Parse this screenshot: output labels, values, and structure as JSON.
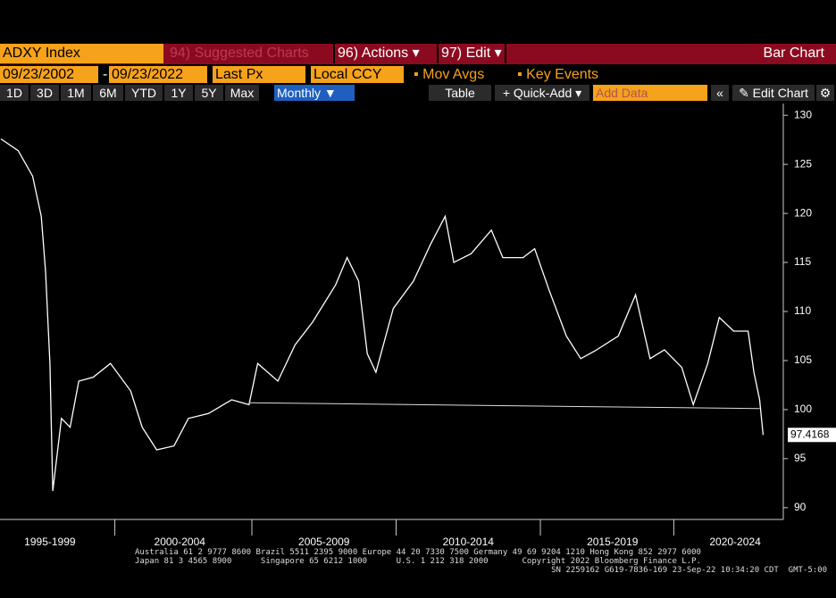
{
  "header": {
    "ticker": "ADXY Index",
    "suggested": "94) Suggested Charts",
    "actions": "96) Actions ▾",
    "edit": "97) Edit ▾",
    "chart_kind": "Bar Chart"
  },
  "settings": {
    "start_date": "09/23/2002",
    "separator": "-",
    "end_date": "09/23/2022",
    "field": "Last Px",
    "currency": "Local CCY",
    "mov_avgs": "Mov Avgs",
    "key_events": "Key Events"
  },
  "toolbar": {
    "ranges": [
      "1D",
      "3D",
      "1M",
      "6M",
      "YTD",
      "1Y",
      "5Y",
      "Max"
    ],
    "period": "Monthly ▼",
    "table": "Table",
    "quick_add": "+ Quick-Add ▾",
    "add_data": "Add Data",
    "back": "«",
    "edit_chart": "✎ Edit Chart",
    "gear": "⚙"
  },
  "footer": [
    "Australia 61 2 9777 8600 Brazil 5511 2395 9000 Europe 44 20 7330 7500 Germany 49 69 9204 1210 Hong Kong 852 2977 6000",
    "Japan 81 3 4565 8900      Singapore 65 6212 1000      U.S. 1 212 318 2000       Copyright 2022 Bloomberg Finance L.P.",
    "SN 2259162 G619-7836-169 23-Sep-22 10:34:20 CDT  GMT-5:00"
  ],
  "chart_data": {
    "type": "line",
    "color": "#ffffff",
    "x": [
      1996.3,
      1996.9,
      1997.4,
      1997.7,
      1997.85,
      1998.0,
      1998.1,
      1998.4,
      1998.7,
      1999.0,
      1999.5,
      2000.1,
      2000.8,
      2001.2,
      2001.7,
      2002.3,
      2002.8,
      2003.5,
      2004.3,
      2004.9,
      2005.2,
      2005.9,
      2006.5,
      2007.1,
      2007.9,
      2008.3,
      2008.7,
      2009.0,
      2009.3,
      2009.9,
      2010.6,
      2011.2,
      2011.7,
      2012.0,
      2012.6,
      2013.3,
      2013.7,
      2014.4,
      2014.8,
      2015.3,
      2015.9,
      2016.4,
      2016.9,
      2017.7,
      2018.3,
      2018.8,
      2019.3,
      2019.9,
      2020.3,
      2020.8,
      2021.2,
      2021.7,
      2022.2,
      2022.4,
      2022.6,
      2022.72
    ],
    "values": [
      127.6,
      126.4,
      123.8,
      119.7,
      114.1,
      104.7,
      91.7,
      99.1,
      98.2,
      102.9,
      103.3,
      104.7,
      101.9,
      98.2,
      95.9,
      96.3,
      99.1,
      99.6,
      101.0,
      100.5,
      104.7,
      102.9,
      106.6,
      108.9,
      112.7,
      115.5,
      113.1,
      105.7,
      103.8,
      110.3,
      113.1,
      116.9,
      119.7,
      115.0,
      115.9,
      118.3,
      115.5,
      115.5,
      116.4,
      112.2,
      107.5,
      105.2,
      106.0,
      107.5,
      111.7,
      105.2,
      106.1,
      104.3,
      100.5,
      104.7,
      109.4,
      108.0,
      108.0,
      103.8,
      101.0,
      97.4168
    ],
    "trendline": {
      "x": [
        2004.9,
        2022.6
      ],
      "values": [
        100.7,
        100.1
      ]
    },
    "xlim": [
      1996.27,
      2023.42
    ],
    "ylim": [
      88.8,
      131.2
    ],
    "xticks": [
      {
        "value": 1998,
        "label": "1995-1999"
      },
      {
        "value": 2002.5,
        "label": "2000-2004"
      },
      {
        "value": 2007.5,
        "label": "2005-2009"
      },
      {
        "value": 2012.5,
        "label": "2010-2014"
      },
      {
        "value": 2017.5,
        "label": "2015-2019"
      },
      {
        "value": 2021.75,
        "label": "2020-2024"
      }
    ],
    "yticks": [
      90,
      95,
      100,
      105,
      110,
      115,
      120,
      125,
      130
    ]
  }
}
